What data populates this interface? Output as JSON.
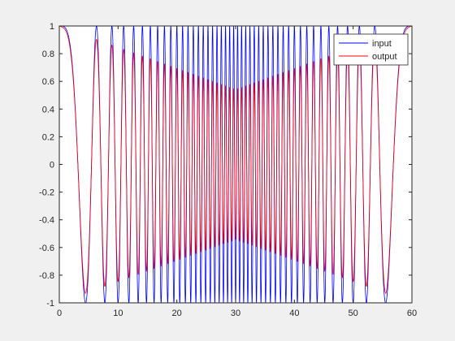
{
  "chart_data": {
    "type": "line",
    "title": "",
    "xlabel": "",
    "ylabel": "",
    "xlim": [
      0,
      60
    ],
    "ylim": [
      -1,
      1
    ],
    "x_ticks": [
      "0",
      "10",
      "20",
      "30",
      "40",
      "50",
      "60"
    ],
    "y_ticks": [
      "-1",
      "-0.8",
      "-0.6",
      "-0.4",
      "-0.2",
      "0",
      "0.2",
      "0.4",
      "0.6",
      "0.8",
      "1"
    ],
    "grid": false,
    "legend_position": "top-right",
    "series": [
      {
        "name": "input",
        "color": "#0000ff",
        "signal": "symmetric chirp cos(phase), frequency rising linearly from 0 at x=0 to a peak at x=30 and falling back to 0 at x=60, amplitude 1",
        "amplitude_envelope": {
          "x": [
            0,
            30,
            60
          ],
          "y": [
            1,
            1,
            1
          ]
        }
      },
      {
        "name": "output",
        "color": "#ff0000",
        "signal": "same chirp attenuated by a lowpass filter",
        "amplitude_envelope": {
          "x": [
            0,
            30,
            60
          ],
          "y": [
            1,
            0.54,
            1
          ]
        }
      }
    ]
  }
}
